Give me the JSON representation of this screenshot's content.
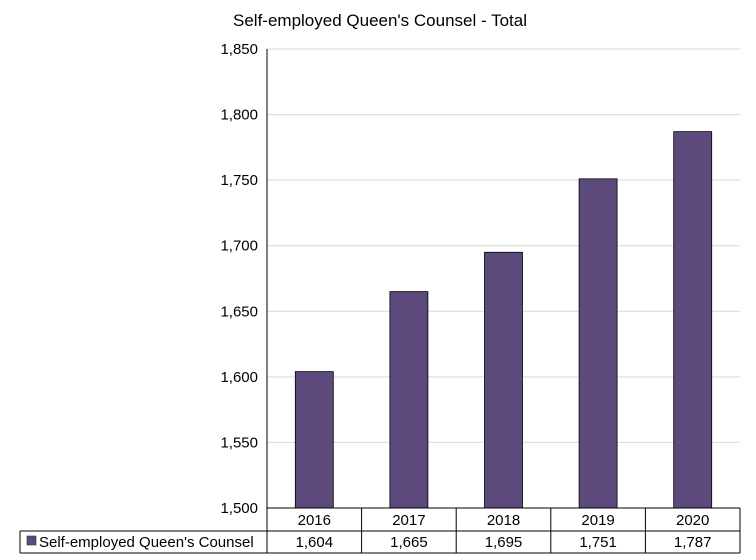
{
  "chart_data": {
    "type": "bar",
    "title": "Self-employed Queen's Counsel - Total",
    "categories": [
      "2016",
      "2017",
      "2018",
      "2019",
      "2020"
    ],
    "series": [
      {
        "name": "Self-employed Queen's Counsel",
        "values": [
          1604,
          1665,
          1695,
          1751,
          1787
        ],
        "color": "#5c4a7d"
      }
    ],
    "data_table": {
      "row_label": "Self-employed Queen's Counsel",
      "values": [
        "1,604",
        "1,665",
        "1,695",
        "1,751",
        "1,787"
      ]
    },
    "ylim": [
      1500,
      1850
    ],
    "yticks": [
      1500,
      1550,
      1600,
      1650,
      1700,
      1750,
      1800,
      1850
    ],
    "ytick_labels": [
      "1,500",
      "1,550",
      "1,600",
      "1,650",
      "1,700",
      "1,750",
      "1,800",
      "1,850"
    ],
    "grid": true,
    "legend": "data-table"
  }
}
